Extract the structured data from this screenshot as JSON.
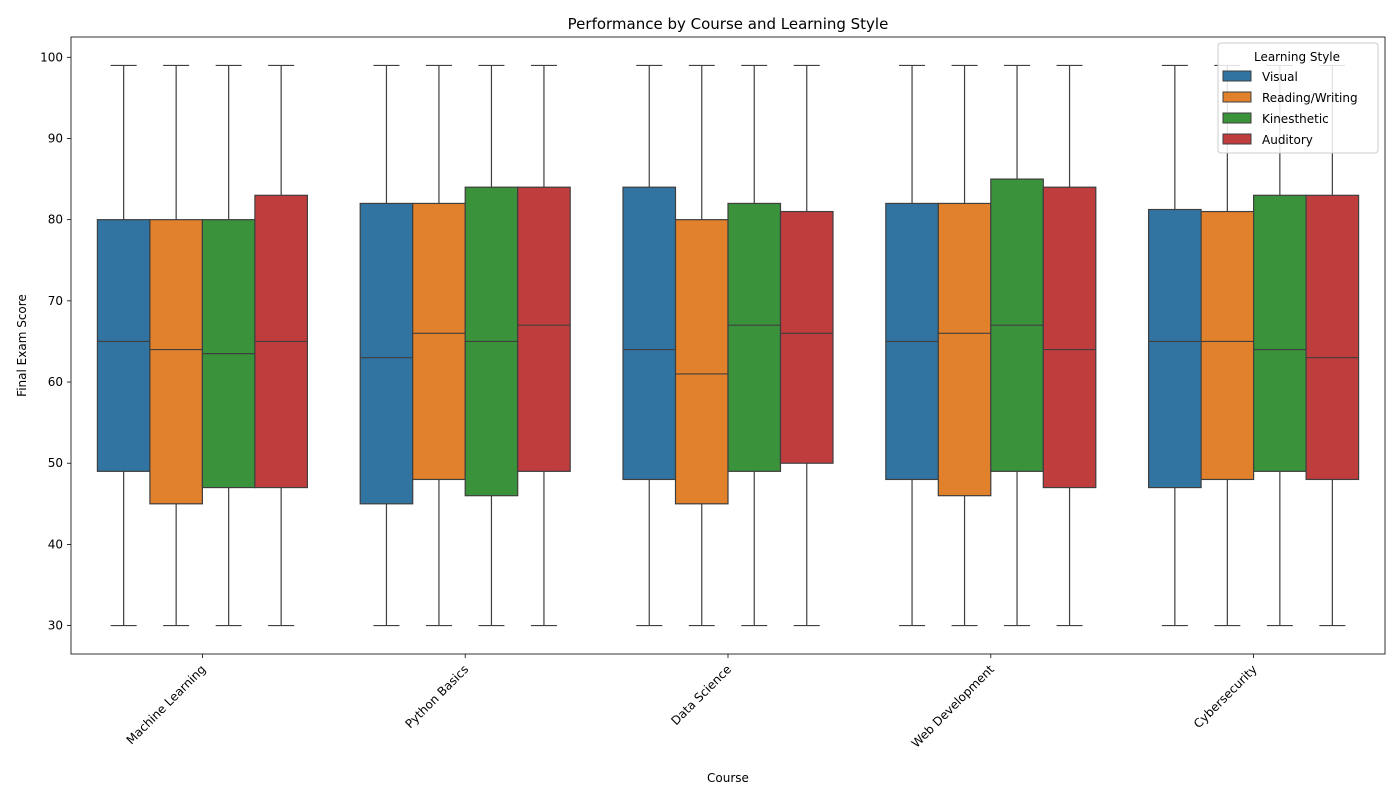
{
  "chart_data": {
    "type": "box",
    "title": "Performance by Course and Learning Style",
    "xlabel": "Course",
    "ylabel": "Final Exam Score",
    "categories": [
      "Machine Learning",
      "Python Basics",
      "Data Science",
      "Web Development",
      "Cybersecurity"
    ],
    "ylim": [
      26.5,
      102.5
    ],
    "yticks": [
      30,
      40,
      50,
      60,
      70,
      80,
      90,
      100
    ],
    "grid": false,
    "legend": {
      "title": "Learning Style",
      "placement": "top-right"
    },
    "series": [
      {
        "name": "Visual",
        "color": "#3274a1",
        "boxes": [
          {
            "min": 30,
            "q1": 49,
            "median": 65,
            "q3": 80,
            "max": 99
          },
          {
            "min": 30,
            "q1": 45,
            "median": 63,
            "q3": 82,
            "max": 99
          },
          {
            "min": 30,
            "q1": 48,
            "median": 64,
            "q3": 84,
            "max": 99
          },
          {
            "min": 30,
            "q1": 48,
            "median": 65,
            "q3": 82,
            "max": 99
          },
          {
            "min": 30,
            "q1": 47,
            "median": 65,
            "q3": 81.25,
            "max": 99
          }
        ]
      },
      {
        "name": "Reading/Writing",
        "color": "#e1812c",
        "boxes": [
          {
            "min": 30,
            "q1": 45,
            "median": 64,
            "q3": 80,
            "max": 99
          },
          {
            "min": 30,
            "q1": 48,
            "median": 66,
            "q3": 82,
            "max": 99
          },
          {
            "min": 30,
            "q1": 45,
            "median": 61,
            "q3": 80,
            "max": 99
          },
          {
            "min": 30,
            "q1": 46,
            "median": 66,
            "q3": 82,
            "max": 99
          },
          {
            "min": 30,
            "q1": 48,
            "median": 65,
            "q3": 81,
            "max": 99
          }
        ]
      },
      {
        "name": "Kinesthetic",
        "color": "#3a923a",
        "boxes": [
          {
            "min": 30,
            "q1": 47,
            "median": 63.5,
            "q3": 80,
            "max": 99
          },
          {
            "min": 30,
            "q1": 46,
            "median": 65,
            "q3": 84,
            "max": 99
          },
          {
            "min": 30,
            "q1": 49,
            "median": 67,
            "q3": 82,
            "max": 99
          },
          {
            "min": 30,
            "q1": 49,
            "median": 67,
            "q3": 85,
            "max": 99
          },
          {
            "min": 30,
            "q1": 49,
            "median": 64,
            "q3": 83,
            "max": 99
          }
        ]
      },
      {
        "name": "Auditory",
        "color": "#c03d3e",
        "boxes": [
          {
            "min": 30,
            "q1": 47,
            "median": 65,
            "q3": 83,
            "max": 99
          },
          {
            "min": 30,
            "q1": 49,
            "median": 67,
            "q3": 84,
            "max": 99
          },
          {
            "min": 30,
            "q1": 50,
            "median": 66,
            "q3": 81,
            "max": 99
          },
          {
            "min": 30,
            "q1": 47,
            "median": 64,
            "q3": 84,
            "max": 99
          },
          {
            "min": 30,
            "q1": 48,
            "median": 63,
            "q3": 83,
            "max": 99
          }
        ]
      }
    ]
  }
}
